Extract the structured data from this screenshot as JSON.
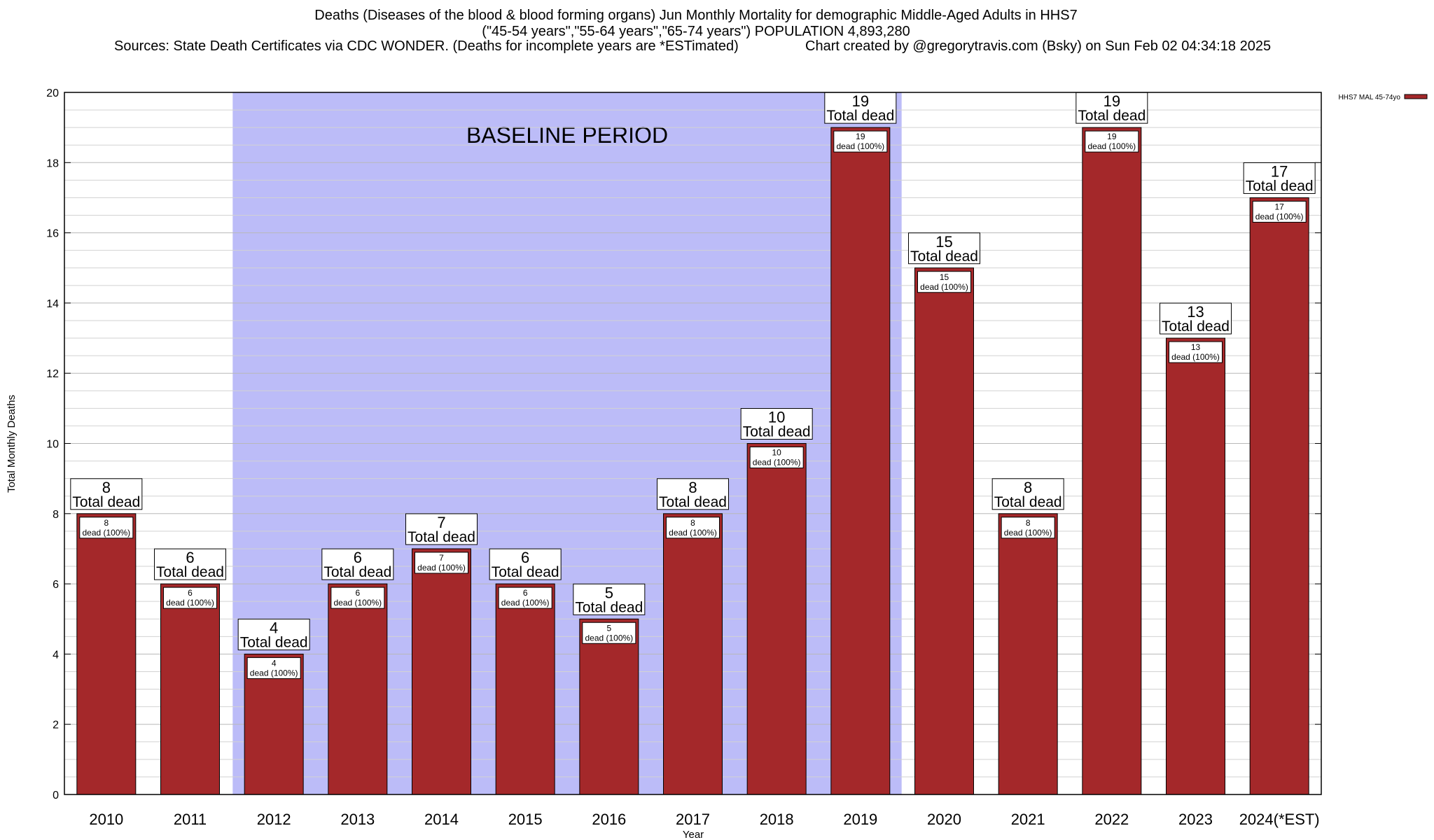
{
  "chart_data": {
    "type": "bar",
    "title_lines": [
      "Deaths (Diseases of the blood & blood forming organs) Jun Monthly Mortality for demographic Middle-Aged Adults in HHS7",
      "(\"45-54 years\",\"55-64 years\",\"65-74 years\") POPULATION 4,893,280"
    ],
    "sources": "Sources: State Death Certificates via CDC WONDER. (Deaths for incomplete years are *ESTimated)",
    "credit": "Chart created by @gregorytravis.com (Bsky) on Sun Feb 02 04:34:18 2025",
    "xlabel": "Year",
    "ylabel": "Total Monthly Deaths",
    "ylim": [
      0,
      20
    ],
    "y_ticks": [
      0,
      2,
      4,
      6,
      8,
      10,
      12,
      14,
      16,
      18,
      20
    ],
    "categories": [
      "2010",
      "2011",
      "2012",
      "2013",
      "2014",
      "2015",
      "2016",
      "2017",
      "2018",
      "2019",
      "2020",
      "2021",
      "2022",
      "2023",
      "2024(*EST)"
    ],
    "series": [
      {
        "name": "HHS7 MAL 45-74yo",
        "color": "#a4282a",
        "values": [
          8,
          6,
          4,
          6,
          7,
          6,
          5,
          8,
          10,
          19,
          15,
          8,
          19,
          13,
          17
        ]
      }
    ],
    "top_label_text": "Total dead",
    "inner_label_text": "dead (100%)",
    "baseline": {
      "label": "BASELINE PERIOD",
      "start_category": "2012",
      "end_category": "2019",
      "color": "#bcbcf8"
    },
    "legend_position": "top-right"
  }
}
